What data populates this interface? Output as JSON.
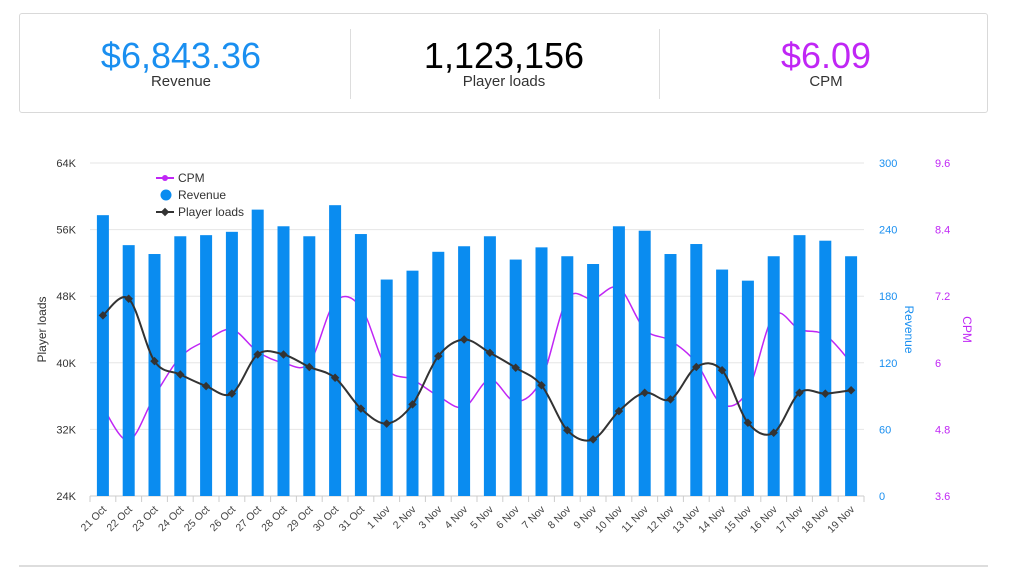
{
  "kpis": {
    "revenue": {
      "value": "$6,843.36",
      "label": "Revenue",
      "color": "#1a8ff0"
    },
    "player_loads": {
      "value": "1,123,156",
      "label": "Player loads",
      "color": "#000000"
    },
    "cpm": {
      "value": "$6.09",
      "label": "CPM",
      "color": "#c026f5"
    }
  },
  "chart_data": {
    "type": "bar",
    "categories": [
      "21 Oct",
      "22 Oct",
      "23 Oct",
      "24 Oct",
      "25 Oct",
      "26 Oct",
      "27 Oct",
      "28 Oct",
      "29 Oct",
      "30 Oct",
      "31 Oct",
      "1 Nov",
      "2 Nov",
      "3 Nov",
      "4 Nov",
      "5 Nov",
      "6 Nov",
      "7 Nov",
      "8 Nov",
      "9 Nov",
      "10 Nov",
      "11 Nov",
      "12 Nov",
      "13 Nov",
      "14 Nov",
      "15 Nov",
      "16 Nov",
      "17 Nov",
      "18 Nov",
      "19 Nov"
    ],
    "series": [
      {
        "name": "Revenue",
        "type": "bar",
        "axis": "revenue",
        "color": "#0a8cf0",
        "values": [
          253,
          226,
          218,
          234,
          235,
          238,
          258,
          243,
          234,
          262,
          236,
          195,
          203,
          220,
          225,
          234,
          213,
          224,
          216,
          209,
          243,
          239,
          218,
          227,
          204,
          194,
          216,
          235,
          230,
          216
        ]
      },
      {
        "name": "Player loads",
        "type": "line",
        "axis": "player_loads",
        "color": "#333333",
        "values": [
          45700,
          47700,
          40200,
          38600,
          37200,
          36300,
          41000,
          41000,
          39500,
          38200,
          34500,
          32700,
          35000,
          40800,
          42800,
          41200,
          39400,
          37300,
          31900,
          30800,
          34200,
          36400,
          35600,
          39500,
          39100,
          32800,
          31600,
          36400,
          36300,
          36700
        ]
      },
      {
        "name": "CPM",
        "type": "line",
        "axis": "cpm",
        "color": "#c026f5",
        "values": [
          5.2,
          4.6,
          5.4,
          6.1,
          6.4,
          6.6,
          6.2,
          6,
          6,
          7.1,
          7,
          5.9,
          5.7,
          5.4,
          5.2,
          5.7,
          5.3,
          5.7,
          7.15,
          7.15,
          7.35,
          6.6,
          6.4,
          6,
          5.25,
          5.5,
          6.85,
          6.6,
          6.5,
          6
        ]
      }
    ],
    "axes": {
      "player_loads": {
        "label": "Player loads",
        "ticks": [
          "24K",
          "32K",
          "40K",
          "48K",
          "56K",
          "64K"
        ],
        "min": 24000,
        "max": 64000,
        "color": "#333333"
      },
      "revenue": {
        "label": "Revenue",
        "ticks": [
          "0",
          "60",
          "120",
          "180",
          "240",
          "300"
        ],
        "min": 0,
        "max": 300,
        "color": "#1a8ff0"
      },
      "cpm": {
        "label": "CPM",
        "ticks": [
          "3.6",
          "4.8",
          "6",
          "7.2",
          "8.4",
          "9.6"
        ],
        "min": 3.6,
        "max": 9.6,
        "color": "#c026f5"
      }
    },
    "legend": {
      "placement": "top-left",
      "items": [
        "CPM",
        "Revenue",
        "Player loads"
      ]
    },
    "grid": true
  }
}
